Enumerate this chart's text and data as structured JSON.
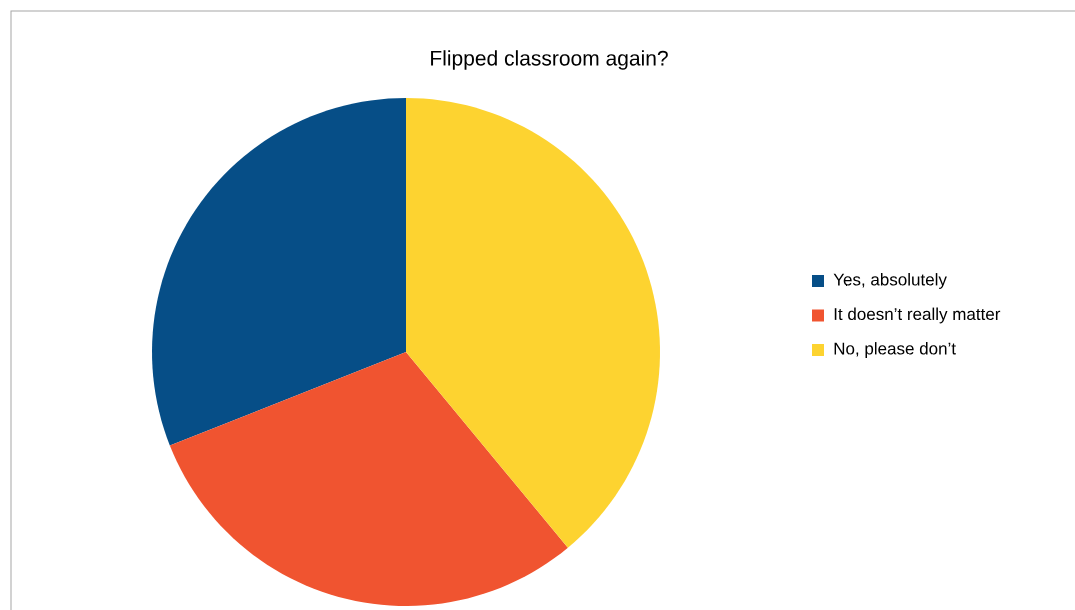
{
  "chart_data": {
    "type": "pie",
    "title": "Flipped classroom again?",
    "categories": [
      "Yes, absolutely",
      "It doesn’t really matter",
      "No, please don’t"
    ],
    "values": [
      31,
      30,
      39
    ],
    "colors": [
      "#064e87",
      "#f05430",
      "#fdd330"
    ],
    "legend": "right"
  }
}
